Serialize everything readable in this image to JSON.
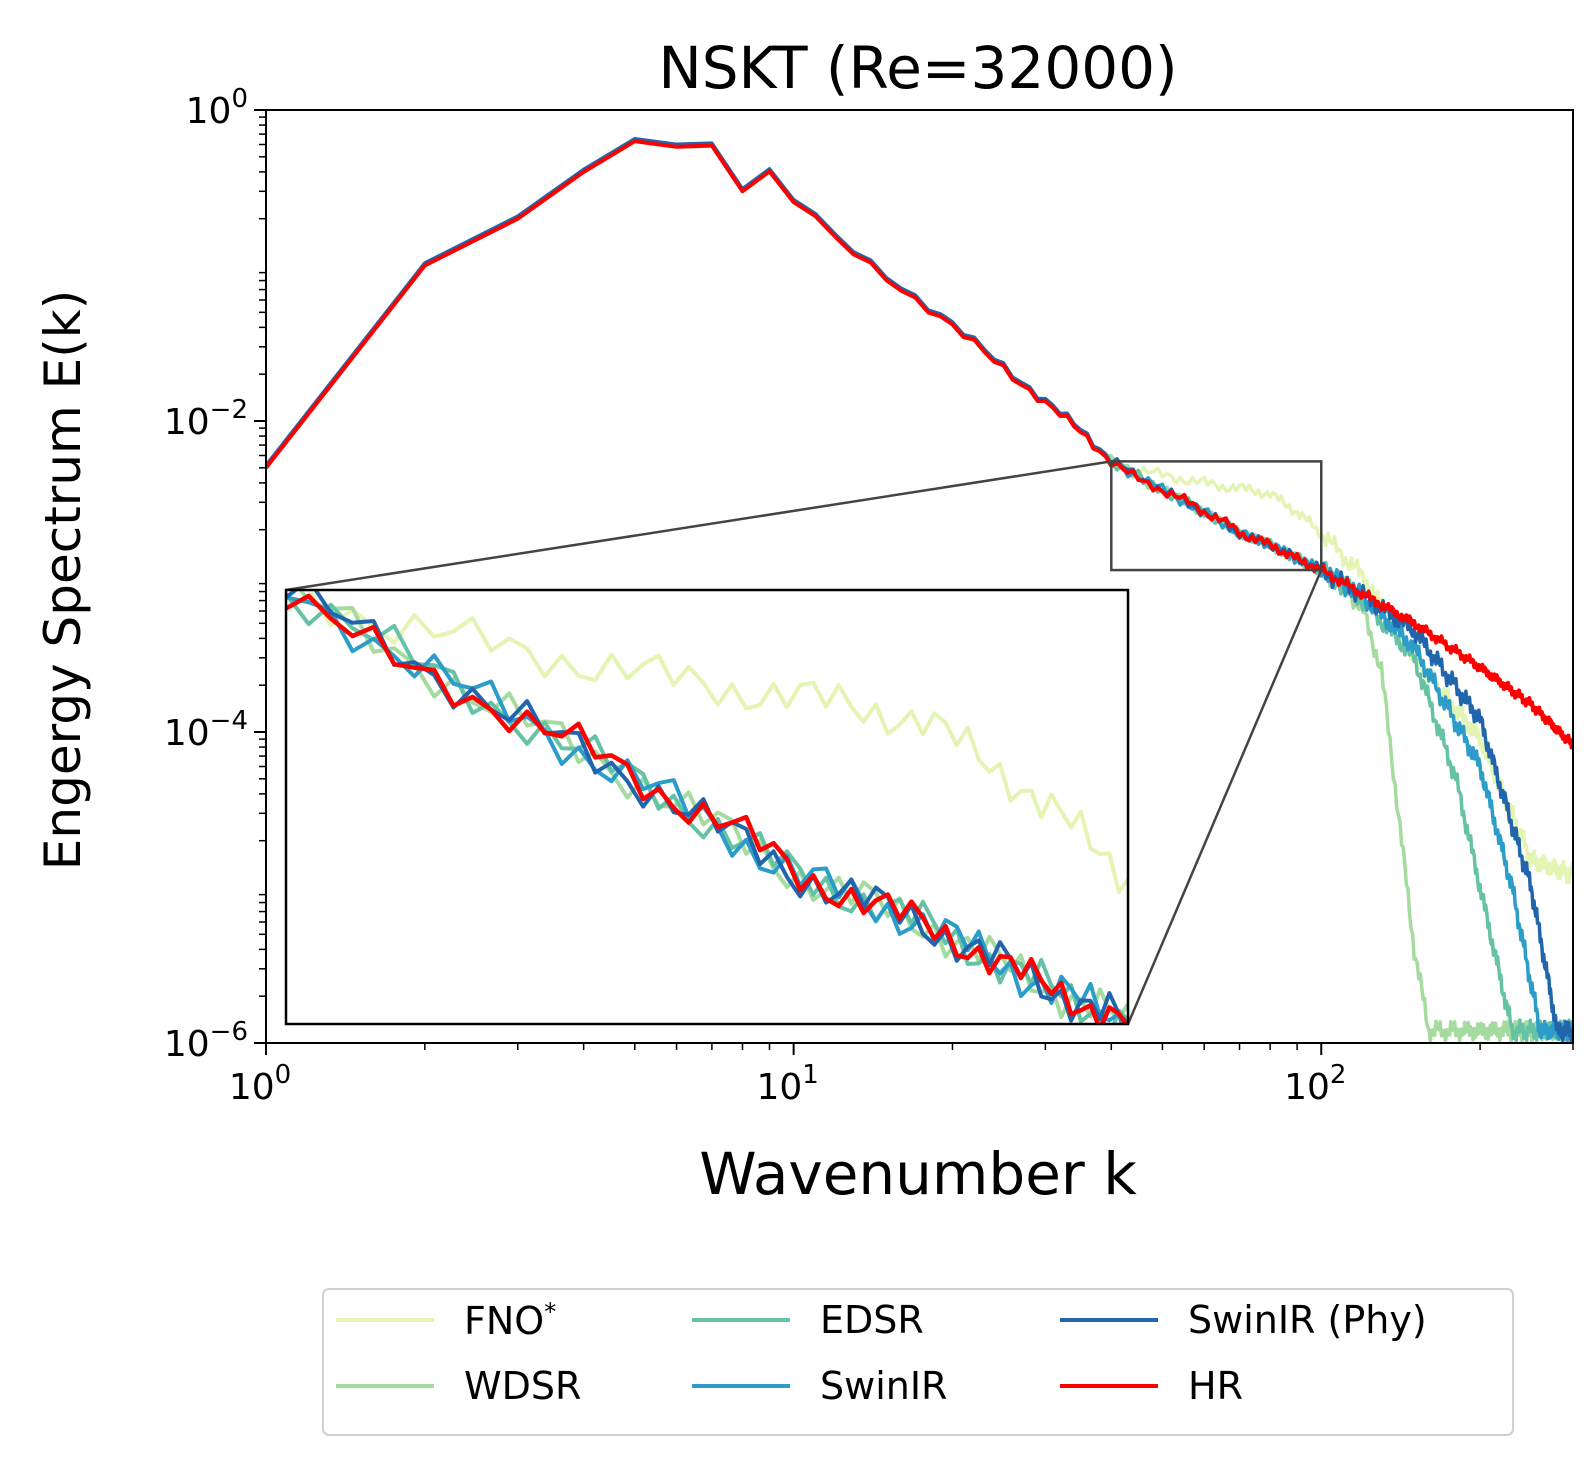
{
  "chart_data": {
    "type": "line",
    "title": "NSKT (Re=32000)",
    "xlabel": "Wavenumber k",
    "ylabel": "Engergy Spectrum E(k)",
    "xscale": "log",
    "yscale": "log",
    "xlim": [
      1,
      300
    ],
    "ylim": [
      1e-06,
      1
    ],
    "xticks": [
      {
        "value": 1,
        "base": "10",
        "exp": "0"
      },
      {
        "value": 10,
        "base": "10",
        "exp": "1"
      },
      {
        "value": 100,
        "base": "10",
        "exp": "2"
      }
    ],
    "yticks": [
      {
        "value": 1,
        "base": "10",
        "exp": "0"
      },
      {
        "value": 0.01,
        "base": "10",
        "exp": "−2"
      },
      {
        "value": 0.0001,
        "base": "10",
        "exp": "−4"
      },
      {
        "value": 1e-06,
        "base": "10",
        "exp": "−6"
      }
    ],
    "grid": false,
    "legend_position": "bottom-center",
    "zoom": {
      "xlim": [
        40,
        100
      ],
      "ylim": [
        0.0011,
        0.0055
      ]
    },
    "reference": [
      [
        1,
        0.005
      ],
      [
        2,
        0.1
      ],
      [
        3,
        0.2
      ],
      [
        4,
        0.4
      ],
      [
        5,
        0.63
      ],
      [
        6,
        0.58
      ],
      [
        7,
        0.59
      ],
      [
        8,
        0.3
      ],
      [
        9,
        0.38
      ],
      [
        10,
        0.26
      ],
      [
        12,
        0.15
      ],
      [
        15,
        0.085
      ],
      [
        20,
        0.04
      ],
      [
        25,
        0.022
      ],
      [
        30,
        0.013
      ],
      [
        35,
        0.0085
      ],
      [
        40,
        0.0055
      ],
      [
        45,
        0.0042
      ],
      [
        50,
        0.0036
      ],
      [
        55,
        0.0031
      ],
      [
        60,
        0.0026
      ],
      [
        65,
        0.0023
      ],
      [
        70,
        0.0019
      ],
      [
        80,
        0.0016
      ],
      [
        90,
        0.0013
      ],
      [
        100,
        0.0011
      ],
      [
        120,
        0.00077
      ],
      [
        150,
        0.0005
      ],
      [
        200,
        0.00026
      ],
      [
        250,
        0.00015
      ],
      [
        300,
        8.23e-05
      ]
    ],
    "series": [
      {
        "name": "FNO*",
        "color": "#e3f4b3",
        "points": [
          [
            40,
            0.0056
          ],
          [
            45,
            0.0048
          ],
          [
            50,
            0.0045
          ],
          [
            55,
            0.0042
          ],
          [
            60,
            0.004
          ],
          [
            65,
            0.0038
          ],
          [
            70,
            0.0037
          ],
          [
            80,
            0.0034
          ],
          [
            90,
            0.0026
          ],
          [
            100,
            0.0019
          ],
          [
            120,
            0.001
          ],
          [
            150,
            0.0003
          ],
          [
            200,
            9e-05
          ],
          [
            250,
            1.5e-05
          ],
          [
            300,
            1.2e-05
          ]
        ]
      },
      {
        "name": "WDSR",
        "color": "#a6dba0",
        "points": [
          [
            40,
            0.0055
          ],
          [
            50,
            0.0036
          ],
          [
            60,
            0.0026
          ],
          [
            70,
            0.0019
          ],
          [
            80,
            0.0016
          ],
          [
            90,
            0.0013
          ],
          [
            100,
            0.0011
          ],
          [
            110,
            0.0009
          ],
          [
            120,
            0.0006
          ],
          [
            130,
            0.00025
          ],
          [
            140,
            3e-05
          ],
          [
            150,
            4e-06
          ],
          [
            160,
            1.2e-06
          ]
        ]
      },
      {
        "name": "EDSR",
        "color": "#66c2a4",
        "points": [
          [
            40,
            0.0055
          ],
          [
            50,
            0.0036
          ],
          [
            60,
            0.0026
          ],
          [
            70,
            0.0019
          ],
          [
            80,
            0.0016
          ],
          [
            90,
            0.0013
          ],
          [
            100,
            0.0011
          ],
          [
            120,
            0.0007
          ],
          [
            150,
            0.0003
          ],
          [
            180,
            5e-05
          ],
          [
            200,
            1e-05
          ],
          [
            230,
            1.2e-06
          ]
        ]
      },
      {
        "name": "SwinIR",
        "color": "#2c9cc8",
        "points": [
          [
            40,
            0.0055
          ],
          [
            50,
            0.0036
          ],
          [
            60,
            0.0026
          ],
          [
            70,
            0.0019
          ],
          [
            80,
            0.0016
          ],
          [
            90,
            0.0013
          ],
          [
            100,
            0.0011
          ],
          [
            120,
            0.00074
          ],
          [
            150,
            0.00035
          ],
          [
            200,
            6e-05
          ],
          [
            230,
            1e-05
          ],
          [
            260,
            1.2e-06
          ]
        ]
      },
      {
        "name": "SwinIR (Phy)",
        "color": "#2166ac",
        "points": [
          [
            40,
            0.0055
          ],
          [
            50,
            0.0036
          ],
          [
            60,
            0.0026
          ],
          [
            70,
            0.0019
          ],
          [
            80,
            0.0016
          ],
          [
            90,
            0.0013
          ],
          [
            100,
            0.0011
          ],
          [
            120,
            0.00076
          ],
          [
            150,
            0.00045
          ],
          [
            200,
            0.00012
          ],
          [
            250,
            1e-05
          ],
          [
            280,
            1.2e-06
          ]
        ]
      },
      {
        "name": "HR",
        "color": "#ff0000",
        "points": "reference"
      }
    ]
  },
  "legend": {
    "items": [
      {
        "label": "FNO",
        "sup": "*",
        "color": "#e3f4b3"
      },
      {
        "label": "WDSR",
        "sup": "",
        "color": "#a6dba0"
      },
      {
        "label": "EDSR",
        "sup": "",
        "color": "#66c2a4"
      },
      {
        "label": "SwinIR",
        "sup": "",
        "color": "#2c9cc8"
      },
      {
        "label": "SwinIR (Phy)",
        "sup": "",
        "color": "#2166ac"
      },
      {
        "label": "HR",
        "sup": "",
        "color": "#ff0000"
      }
    ]
  }
}
